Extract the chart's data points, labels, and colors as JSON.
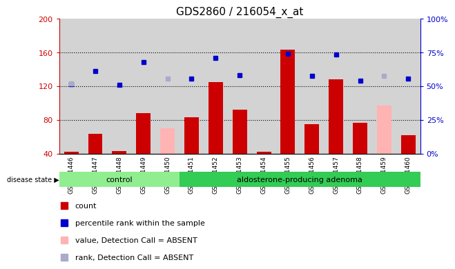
{
  "title": "GDS2860 / 216054_x_at",
  "samples": [
    "GSM211446",
    "GSM211447",
    "GSM211448",
    "GSM211449",
    "GSM211450",
    "GSM211451",
    "GSM211452",
    "GSM211453",
    "GSM211454",
    "GSM211455",
    "GSM211456",
    "GSM211457",
    "GSM211458",
    "GSM211459",
    "GSM211460"
  ],
  "count_values": [
    42,
    63,
    43,
    88,
    null,
    83,
    125,
    92,
    42,
    163,
    75,
    128,
    76,
    null,
    62
  ],
  "count_absent": [
    null,
    null,
    null,
    null,
    70,
    null,
    null,
    null,
    null,
    null,
    null,
    null,
    null,
    97,
    null
  ],
  "rank_values": [
    122,
    138,
    121,
    148,
    null,
    129,
    153,
    133,
    null,
    158,
    132,
    157,
    126,
    null,
    129
  ],
  "rank_absent": [
    123,
    null,
    null,
    null,
    129,
    null,
    null,
    null,
    null,
    null,
    null,
    null,
    null,
    132,
    null
  ],
  "n_control": 5,
  "n_adenoma": 10,
  "ylim_left": [
    40,
    200
  ],
  "ylim_right": [
    0,
    100
  ],
  "bar_color": "#cc0000",
  "bar_absent_color": "#ffb3b3",
  "rank_color": "#0000cc",
  "rank_absent_color": "#aaaacc",
  "bg_color": "#d3d3d3",
  "control_bg": "#90ee90",
  "adenoma_bg": "#33cc55",
  "tick_color_left": "#cc0000",
  "tick_color_right": "#0000cc"
}
